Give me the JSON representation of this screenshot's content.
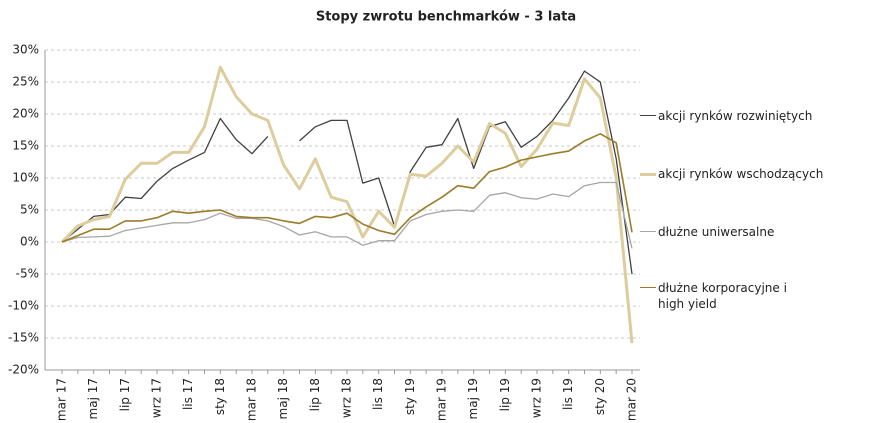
{
  "chart_data": {
    "type": "line",
    "title": "Stopy zwrotu benchmarków - 3 lata",
    "categories": [
      "mar 17",
      null,
      "maj 17",
      null,
      "lip 17",
      null,
      "wrz 17",
      null,
      "lis 17",
      null,
      "sty 18",
      null,
      "mar 18",
      null,
      "maj 18",
      null,
      "lip 18",
      null,
      "wrz 18",
      null,
      "lis 18",
      null,
      "sty 19",
      null,
      "mar 19",
      null,
      "maj 19",
      null,
      "lip 19",
      null,
      "wrz 19",
      null,
      "lis 19",
      null,
      "sty 20",
      null,
      "mar 20"
    ],
    "series": [
      {
        "name": "akcji rynków rozwiniętych",
        "color": "#404040",
        "width": 1.3,
        "values": [
          0,
          2,
          4,
          4.3,
          7,
          6.8,
          9.5,
          11.5,
          12.8,
          14,
          19.3,
          16,
          13.8,
          16.5,
          null,
          15.8,
          18,
          19,
          19,
          9.2,
          10,
          2.5,
          11,
          14.8,
          15.2,
          19.3,
          11.5,
          18,
          18.8,
          14.8,
          16.5,
          19,
          22.5,
          26.7,
          25,
          13,
          -5
        ]
      },
      {
        "name": "akcji rynków wschodzących",
        "color": "#ddcc9c",
        "width": 3,
        "values": [
          0,
          2.5,
          3.5,
          4,
          9.8,
          12.3,
          12.3,
          14,
          14,
          18,
          27.3,
          22.7,
          20,
          19,
          12,
          8.3,
          13,
          7,
          6.3,
          0.8,
          4.8,
          2.3,
          10.6,
          10.3,
          12.3,
          15,
          12.5,
          18.5,
          17,
          11.8,
          14.5,
          18.6,
          18.2,
          25.5,
          22.5,
          10,
          -15.8
        ]
      },
      {
        "name": "dłużne uniwersalne",
        "color": "#a6a6a6",
        "width": 1.3,
        "values": [
          0,
          0.7,
          0.8,
          0.9,
          1.8,
          2.2,
          2.6,
          3,
          3,
          3.5,
          4.5,
          3.7,
          3.7,
          3.3,
          2.4,
          1.1,
          1.6,
          0.8,
          0.8,
          -0.5,
          0.2,
          0.2,
          3.3,
          4.3,
          4.8,
          5,
          4.8,
          7.3,
          7.7,
          6.9,
          6.7,
          7.5,
          7.1,
          8.8,
          9.3,
          9.3,
          -1
        ]
      },
      {
        "name": "dłużne korporacyjne i high yield",
        "color": "#9c7c2a",
        "width": 1.6,
        "values": [
          0,
          1,
          2,
          2,
          3.3,
          3.3,
          3.8,
          4.8,
          4.5,
          4.8,
          5,
          4,
          3.8,
          3.8,
          3.3,
          2.9,
          4,
          3.8,
          4.5,
          2.8,
          1.8,
          1.2,
          3.8,
          5.5,
          7,
          8.8,
          8.4,
          11,
          11.7,
          12.8,
          13.3,
          13.8,
          14.2,
          15.8,
          16.9,
          15.5,
          1.5
        ]
      }
    ],
    "ylim": [
      -20,
      30
    ],
    "yticks": [
      {
        "value": -20,
        "label": "-20%"
      },
      {
        "value": -15,
        "label": "-15%"
      },
      {
        "value": -10,
        "label": "-10%"
      },
      {
        "value": -5,
        "label": "-5%"
      },
      {
        "value": 0,
        "label": "0%"
      },
      {
        "value": 5,
        "label": "5%"
      },
      {
        "value": 10,
        "label": "10%"
      },
      {
        "value": 15,
        "label": "15%"
      },
      {
        "value": 20,
        "label": "20%"
      },
      {
        "value": 25,
        "label": "25%"
      },
      {
        "value": 30,
        "label": "30%"
      }
    ],
    "grid": true
  }
}
